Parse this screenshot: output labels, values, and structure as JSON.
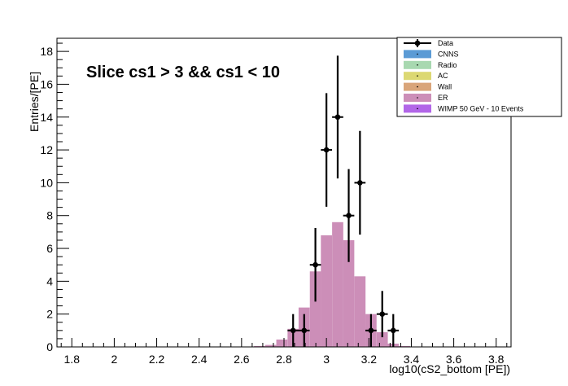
{
  "chart_data": {
    "type": "bar",
    "title": "Slice cs1 > 3 && cs1 < 10",
    "xlabel": "log10(cS2_bottom [PE])",
    "ylabel": "Entries/[PE]",
    "xlim": [
      1.73,
      3.87
    ],
    "ylim": [
      0,
      18.8
    ],
    "x_ticks": [
      1.8,
      2,
      2.2,
      2.4,
      2.6,
      2.8,
      3,
      3.2,
      3.4,
      3.6,
      3.8
    ],
    "x_tick_labels": [
      "1.8",
      "2",
      "2.2",
      "2.4",
      "2.6",
      "2.8",
      "3",
      "3.2",
      "3.4",
      "3.6",
      "3.8"
    ],
    "y_ticks": [
      0,
      2,
      4,
      6,
      8,
      10,
      12,
      14,
      16,
      18
    ],
    "y_tick_labels": [
      "0",
      "2",
      "4",
      "6",
      "8",
      "10",
      "12",
      "14",
      "16",
      "18"
    ],
    "bin_width": 0.0525,
    "er_histogram": {
      "name": "ER",
      "color": "#cc8eb8",
      "bins": [
        {
          "x": 2.685,
          "y": 0.05
        },
        {
          "x": 2.738,
          "y": 0.12
        },
        {
          "x": 2.79,
          "y": 0.45
        },
        {
          "x": 2.843,
          "y": 1.1
        },
        {
          "x": 2.895,
          "y": 2.4
        },
        {
          "x": 2.948,
          "y": 4.6
        },
        {
          "x": 3.0,
          "y": 6.8
        },
        {
          "x": 3.053,
          "y": 7.6
        },
        {
          "x": 3.105,
          "y": 6.5
        },
        {
          "x": 3.158,
          "y": 4.3
        },
        {
          "x": 3.21,
          "y": 2.0
        },
        {
          "x": 3.263,
          "y": 0.9
        },
        {
          "x": 3.315,
          "y": 0.2
        },
        {
          "x": 3.368,
          "y": 0.05
        }
      ]
    },
    "data_points": {
      "name": "Data",
      "color": "#000000",
      "points": [
        {
          "x": 2.843,
          "y": 1,
          "err": 1
        },
        {
          "x": 2.895,
          "y": 1,
          "err": 1
        },
        {
          "x": 2.948,
          "y": 5,
          "err": 2.24
        },
        {
          "x": 3.0,
          "y": 12,
          "err": 3.46
        },
        {
          "x": 3.053,
          "y": 14,
          "err": 3.74
        },
        {
          "x": 3.105,
          "y": 8,
          "err": 2.83
        },
        {
          "x": 3.158,
          "y": 10,
          "err": 3.16
        },
        {
          "x": 3.21,
          "y": 1,
          "err": 1
        },
        {
          "x": 3.263,
          "y": 2,
          "err": 1.41
        },
        {
          "x": 3.315,
          "y": 1,
          "err": 1
        }
      ]
    },
    "legend": {
      "placement": "top-right",
      "entries": [
        {
          "label": "Data",
          "style": "marker",
          "color": "#000000"
        },
        {
          "label": "CNNS",
          "style": "fill",
          "color": "#5b9bd5"
        },
        {
          "label": "Radio",
          "style": "fill",
          "color": "#a8d8b0"
        },
        {
          "label": "AC",
          "style": "fill",
          "color": "#dcd873"
        },
        {
          "label": "Wall",
          "style": "fill",
          "color": "#d9a57a"
        },
        {
          "label": "ER",
          "style": "fill",
          "color": "#cc8eb8"
        },
        {
          "label": "WIMP 50 GeV - 10 Events",
          "style": "fill",
          "color": "#b266e8"
        }
      ]
    }
  }
}
